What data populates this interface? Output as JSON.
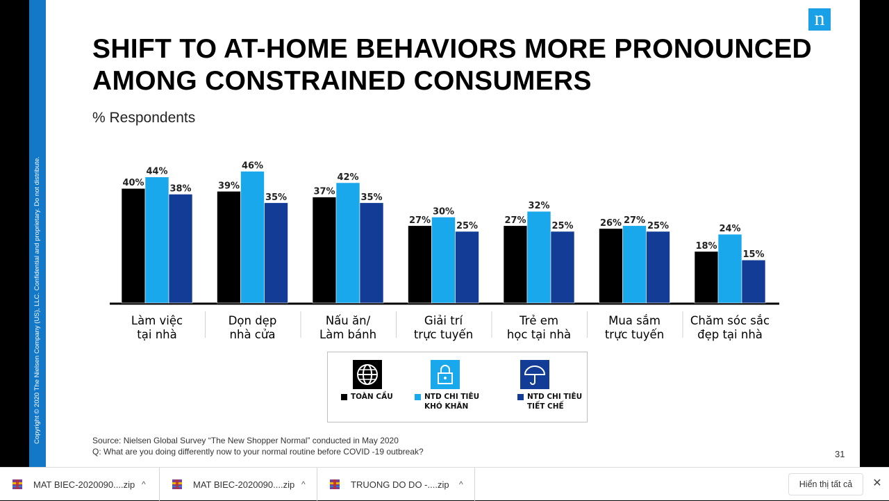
{
  "slide": {
    "title_line1": "SHIFT TO AT-HOME BEHAVIORS MORE PRONOUNCED",
    "title_line2": "AMONG CONSTRAINED CONSUMERS",
    "subtitle": "% Respondents",
    "copyright": "Copyright © 2020 The Nielsen Company (US), LLC. Confidential and proprietary. Do not distribute.",
    "logo_letter": "n",
    "source_line1": "Source: Nielsen Global Survey “The New Shopper Normal” conducted in May 2020",
    "source_line2": "Q: What are you doing differently now to your normal routine before COVID -19 outbreak?",
    "page_number": "31"
  },
  "chart_data": {
    "type": "bar",
    "title": "% Respondents",
    "categories": [
      [
        "Làm việc",
        "tại nhà"
      ],
      [
        "Dọn dẹp",
        "nhà cửa"
      ],
      [
        "Nấu ăn/",
        "Làm bánh"
      ],
      [
        "Giải trí",
        "trực tuyến"
      ],
      [
        "Trẻ em",
        "học tại nhà"
      ],
      [
        "Mua sắm",
        "trực tuyến"
      ],
      [
        "Chăm sóc sắc",
        "đẹp tại nhà"
      ]
    ],
    "series": [
      {
        "name": "TOÀN CẦU",
        "color": "#000000",
        "values": [
          40,
          39,
          37,
          27,
          27,
          26,
          18
        ]
      },
      {
        "name": "NTD CHI TIÊU KHÓ KHĂN",
        "color": "#1aa8ec",
        "values": [
          44,
          46,
          42,
          30,
          32,
          27,
          24
        ]
      },
      {
        "name": "NTD CHI TIÊU TIẾT CHẾ",
        "color": "#123c96",
        "values": [
          38,
          35,
          35,
          25,
          25,
          25,
          15
        ]
      }
    ],
    "value_suffix": "%",
    "ylim": [
      0,
      46
    ],
    "grid": false,
    "legend_position": "bottom-center"
  },
  "legend": {
    "items": [
      {
        "line1": "TOÀN CẦU",
        "line2": "",
        "icon": "globe-icon",
        "color": "#000000"
      },
      {
        "line1": "NTD CHI TIÊU",
        "line2": "KHÓ KHĂN",
        "icon": "lock-icon",
        "color": "#1aa8ec"
      },
      {
        "line1": "NTD CHI TIÊU",
        "line2": "TIẾT CHẾ",
        "icon": "umbrella-icon",
        "color": "#123c96"
      }
    ]
  },
  "downloads": {
    "items": [
      {
        "name": "MAT BIEC-2020090....zip"
      },
      {
        "name": "MAT BIEC-2020090....zip"
      },
      {
        "name": "TRUONG DO DO -....zip"
      }
    ],
    "show_all_label": "Hiển thị tất cả",
    "close_label": "✕",
    "chevron": "^"
  }
}
